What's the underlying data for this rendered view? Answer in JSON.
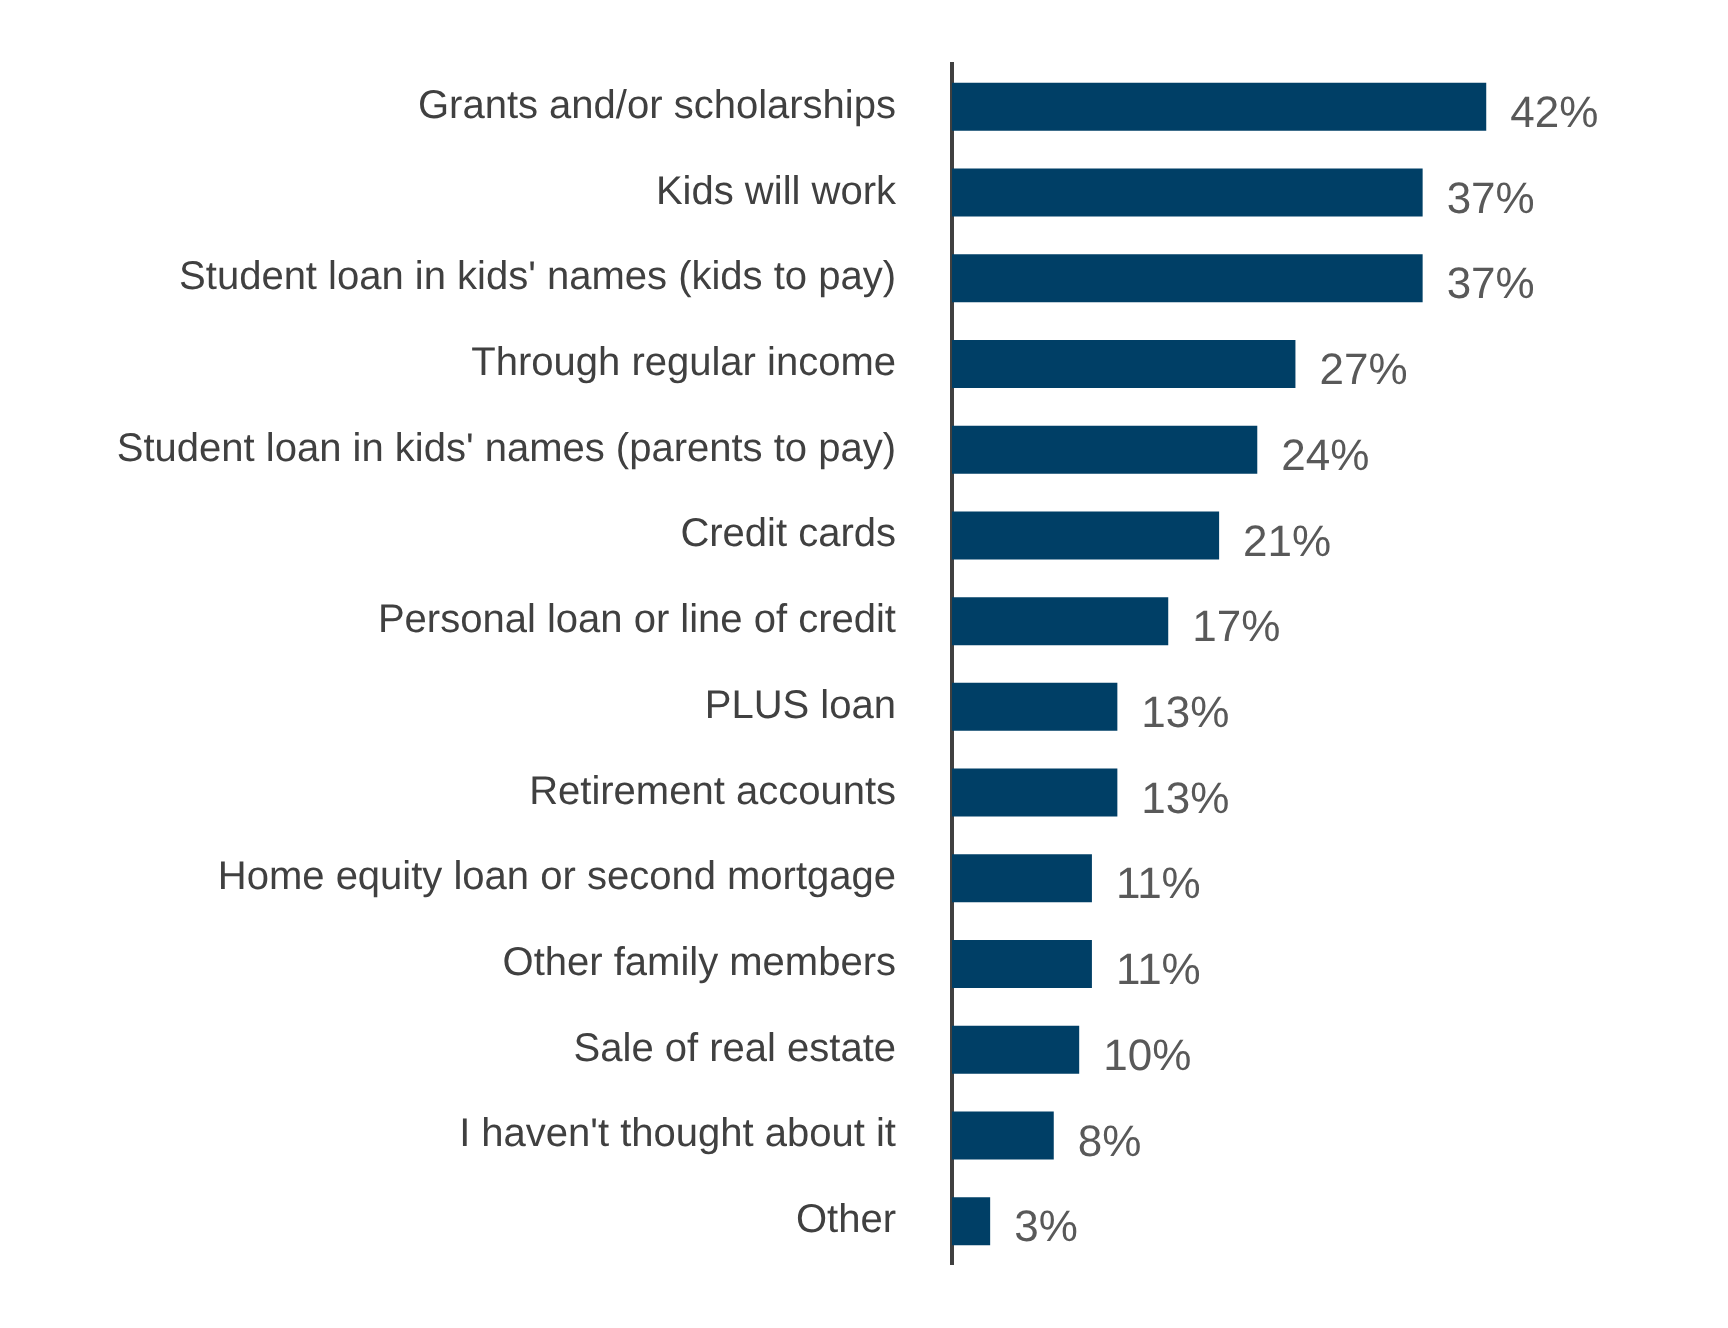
{
  "chart_data": {
    "type": "bar",
    "orientation": "horizontal",
    "categories": [
      "Grants and/or scholarships",
      "Kids will work",
      "Student loan in kids' names (kids to pay)",
      "Through regular income",
      "Student loan in kids' names (parents to pay)",
      "Credit cards",
      "Personal loan or line of credit",
      "PLUS loan",
      "Retirement accounts",
      "Home equity loan or second mortgage",
      "Other family members",
      "Sale of real estate",
      "I haven't thought about it",
      "Other"
    ],
    "values": [
      42,
      37,
      37,
      27,
      24,
      21,
      17,
      13,
      13,
      11,
      11,
      10,
      8,
      3
    ],
    "value_labels": [
      "42%",
      "37%",
      "37%",
      "27%",
      "24%",
      "21%",
      "17%",
      "13%",
      "13%",
      "11%",
      "11%",
      "10%",
      "8%",
      "3%"
    ],
    "color": "#003f66",
    "tick_labels": "y",
    "legend": false
  }
}
